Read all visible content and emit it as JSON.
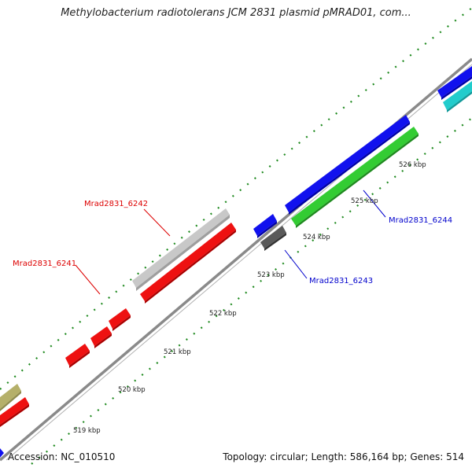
{
  "title": "Methylobacterium radiotolerans JCM 2831 plasmid pMRAD01, com...",
  "footer": {
    "accession": "Accession: NC_010510",
    "summary": "Topology: circular; Length: 586,164 bp; Genes: 514"
  },
  "colors": {
    "backbone": "#8a8a8a",
    "tick": "#1f8a1f",
    "red": "#ee1111",
    "blue": "#1111ee",
    "green": "#33cc33",
    "lightgray": "#c8c8c8",
    "darkgray": "#5a5a5a",
    "cyan": "#22cccc",
    "olive": "#b5b06a",
    "label_red": "#dd0000",
    "label_blue": "#0000cc"
  },
  "ticks": [
    {
      "label": "519 kbp"
    },
    {
      "label": "520 kbp"
    },
    {
      "label": "521 kbp"
    },
    {
      "label": "522 kbp"
    },
    {
      "label": "523 kbp"
    },
    {
      "label": "524 kbp"
    },
    {
      "label": "525 kbp"
    },
    {
      "label": "526 kbp"
    }
  ],
  "genes": [
    {
      "name": "Mrad2831_6241"
    },
    {
      "name": "Mrad2831_6242"
    },
    {
      "name": "Mrad2831_6243"
    },
    {
      "name": "Mrad2831_6244"
    }
  ]
}
